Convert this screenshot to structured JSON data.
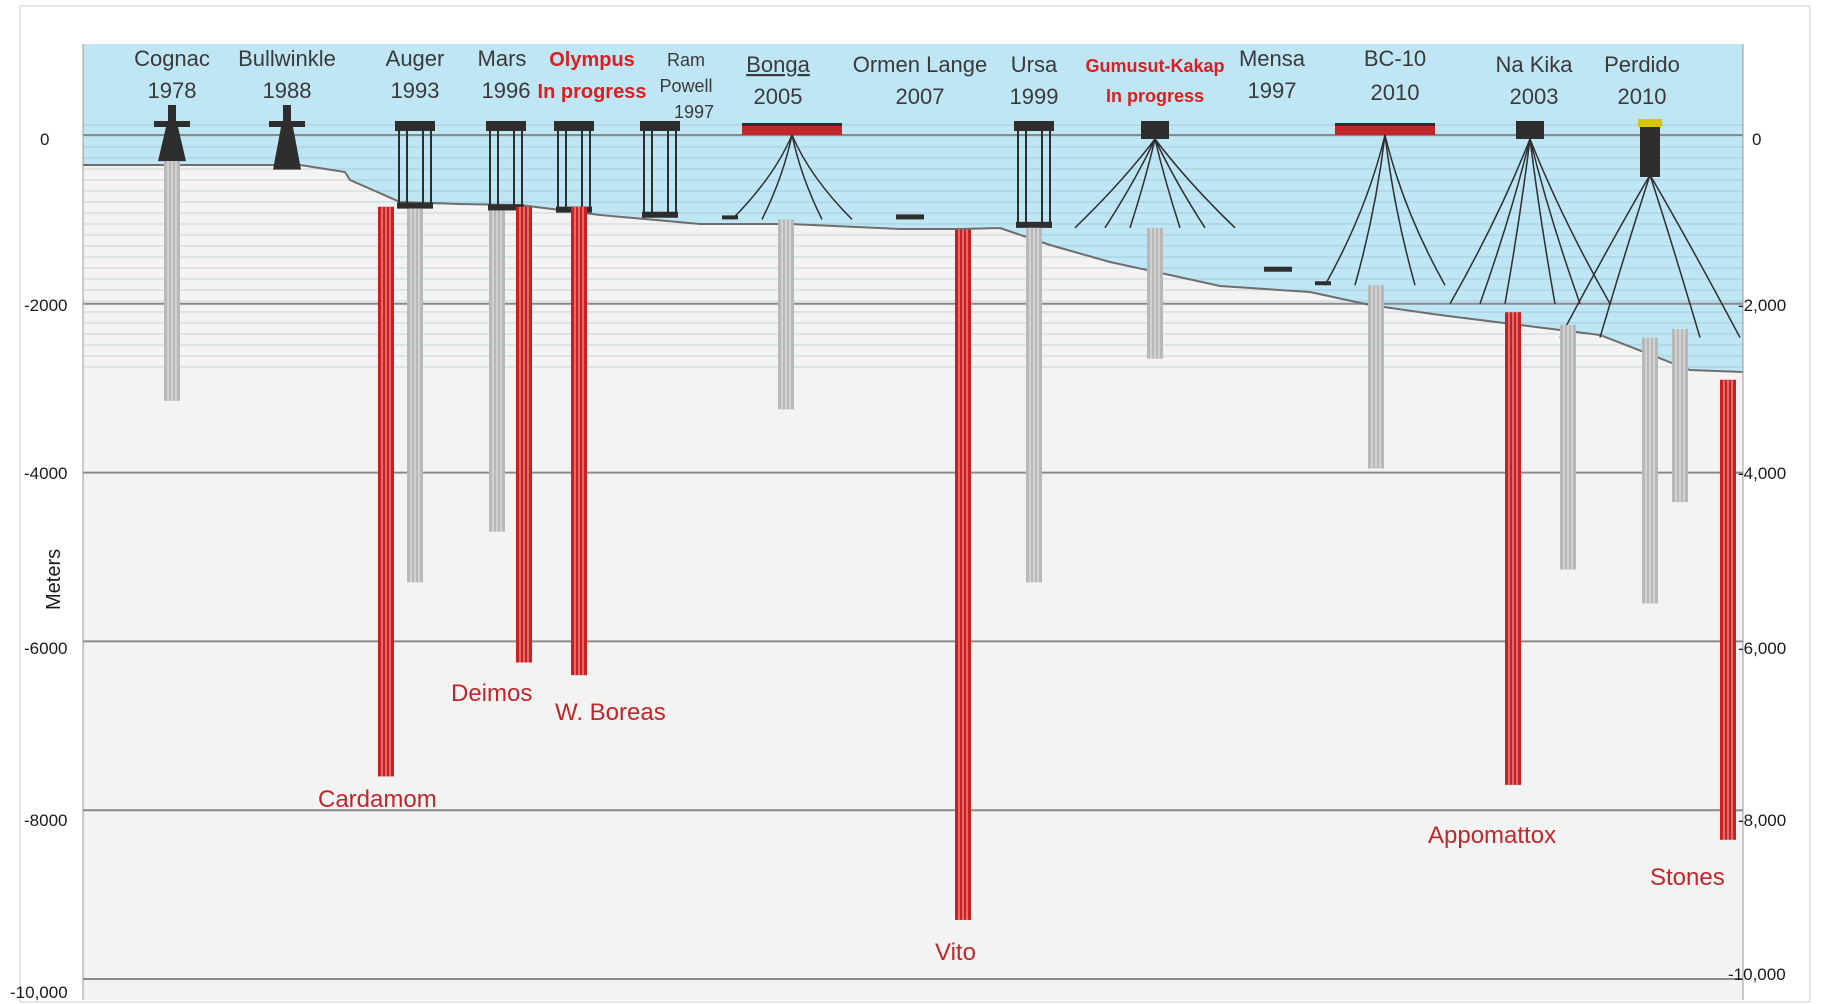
{
  "axis": {
    "title": "Meters",
    "left_ticks": [
      "0",
      "-2000",
      "-4000",
      "-6000",
      "-8000",
      "-10,000"
    ],
    "right_ticks": [
      "0",
      "-2,000",
      "-4,000",
      "-6,000",
      "-8,000",
      "-10,000"
    ],
    "tick_values": [
      0,
      2000,
      4000,
      6000,
      8000,
      10000
    ]
  },
  "colors": {
    "water": "#bfe6f5",
    "seabed": "#f3f3f3",
    "existing_well": "#b8b8b8",
    "new_well": "#cc1f1f",
    "structure": "#2e2e2e",
    "label_highlight": "#d91f1f"
  },
  "projects": [
    {
      "name": "Cognac",
      "year": "1978",
      "highlight": false,
      "type": "fixed-platform",
      "water_depth_m": 310,
      "well_depth_m": 3150
    },
    {
      "name": "Bullwinkle",
      "year": "1988",
      "highlight": false,
      "type": "fixed-platform",
      "water_depth_m": 410,
      "well_depth_m": null
    },
    {
      "name": "Auger",
      "year": "1993",
      "highlight": false,
      "type": "tension-leg-platform",
      "water_depth_m": 872,
      "well_depth_m": 5300
    },
    {
      "name": "Mars",
      "year": "1996",
      "highlight": false,
      "type": "tension-leg-platform",
      "water_depth_m": 894,
      "well_depth_m": 4700
    },
    {
      "name": "Olympus",
      "year": "In progress",
      "highlight": true,
      "type": "tension-leg-platform",
      "water_depth_m": 920,
      "well_depth_m": null
    },
    {
      "name": "Ram Powell",
      "year": "1997",
      "highlight": false,
      "type": "tension-leg-platform",
      "water_depth_m": 980,
      "well_depth_m": null
    },
    {
      "name": "Bonga",
      "year": "2005",
      "highlight": false,
      "type": "fpso",
      "water_depth_m": 1000,
      "well_depth_m": 3250
    },
    {
      "name": "Ormen Lange",
      "year": "2007",
      "highlight": false,
      "type": "subsea",
      "water_depth_m": 1000,
      "well_depth_m": null
    },
    {
      "name": "Ursa",
      "year": "1999",
      "highlight": false,
      "type": "tension-leg-platform",
      "water_depth_m": 1100,
      "well_depth_m": 5300
    },
    {
      "name": "Gumusut-Kakap",
      "year": "In progress",
      "highlight": true,
      "type": "semi-submersible",
      "water_depth_m": 1100,
      "well_depth_m": 2650
    },
    {
      "name": "Mensa",
      "year": "1997",
      "highlight": false,
      "type": "subsea",
      "water_depth_m": 1620,
      "well_depth_m": null
    },
    {
      "name": "BC-10",
      "year": "2010",
      "highlight": false,
      "type": "fpso",
      "water_depth_m": 1780,
      "well_depth_m": 3950
    },
    {
      "name": "Na Kika",
      "year": "2003",
      "highlight": false,
      "type": "semi-submersible",
      "water_depth_m": 2000,
      "well_depth_m": 5150
    },
    {
      "name": "Perdido",
      "year": "2010",
      "highlight": false,
      "type": "spar",
      "water_depth_m": 2400,
      "well_depth_m": 5550
    }
  ],
  "new_discoveries": [
    {
      "name": "Cardamom",
      "top_m": 850,
      "depth_m": 7600
    },
    {
      "name": "Deimos",
      "top_m": 850,
      "depth_m": 6250
    },
    {
      "name": "W. Boreas",
      "top_m": 850,
      "depth_m": 6400
    },
    {
      "name": "Vito",
      "top_m": 1120,
      "depth_m": 9300
    },
    {
      "name": "Appomattox",
      "top_m": 2100,
      "depth_m": 7700
    },
    {
      "name": "Stones",
      "top_m": 2900,
      "depth_m": 8350
    }
  ]
}
